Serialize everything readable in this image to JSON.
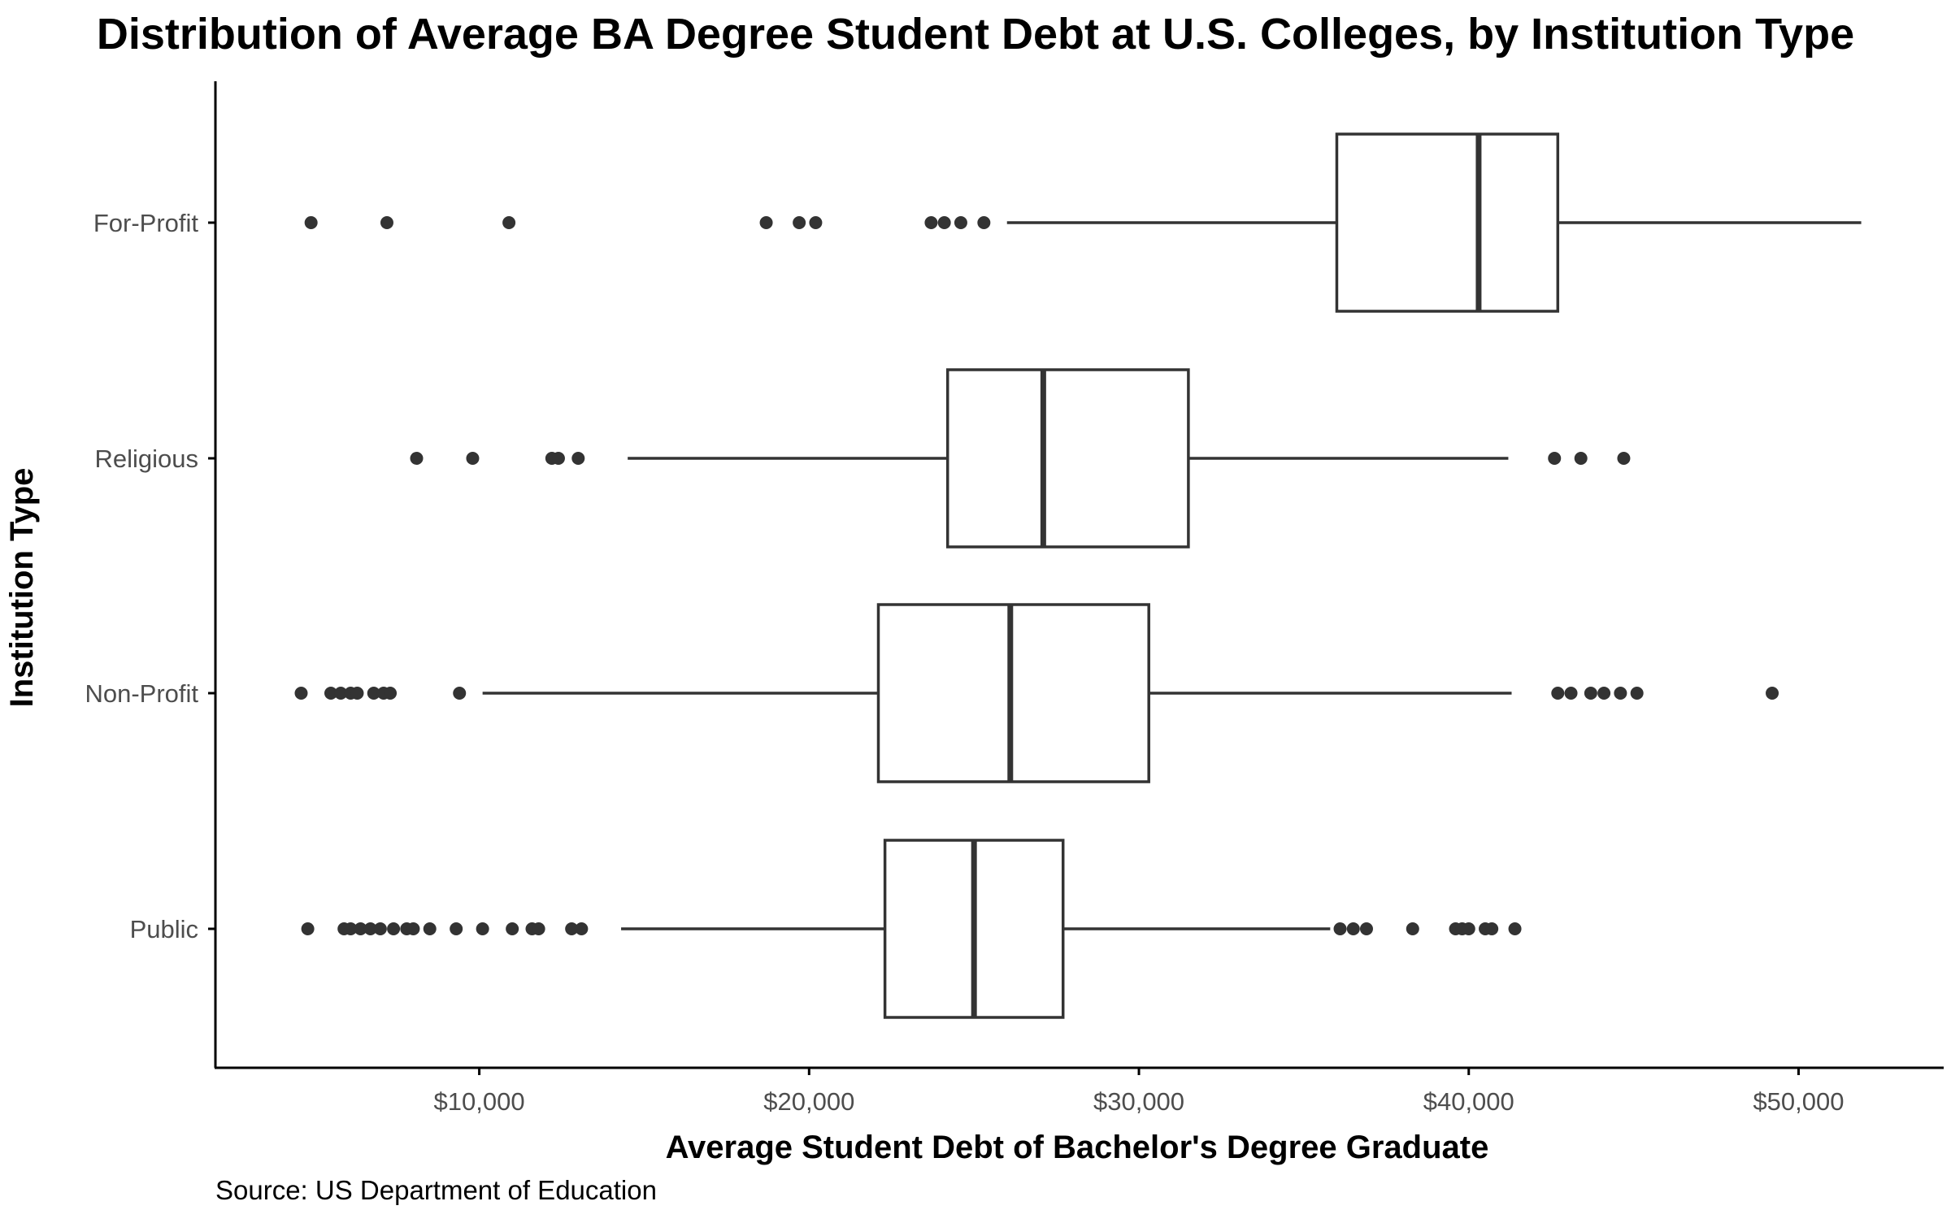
{
  "chart_data": {
    "type": "boxplot",
    "orientation": "horizontal",
    "title": "Distribution of Average BA Degree Student Debt at U.S. Colleges, by Institution Type",
    "xlabel": "Average Student Debt of Bachelor's Degree Graduate",
    "ylabel": "Institution Type",
    "caption": "Source: US Department of Education",
    "xlim": [
      2000,
      54400
    ],
    "xticks": [
      10000,
      20000,
      30000,
      40000,
      50000
    ],
    "xtick_labels": [
      "$10,000",
      "$20,000",
      "$30,000",
      "$40,000",
      "$50,000"
    ],
    "grid": false,
    "colors": {
      "box_fill": "#ffffff",
      "line": "#333333",
      "point": "#333333",
      "axis": "#000000"
    },
    "categories": [
      "For-Profit",
      "Religious",
      "Non-Profit",
      "Public"
    ],
    "boxes": [
      {
        "category": "For-Profit",
        "whisker_low": 26000,
        "q1": 36000,
        "median": 40300,
        "q3": 42700,
        "whisker_high": 51900,
        "outliers": [
          4900,
          7200,
          10900,
          18700,
          19700,
          20200,
          23700,
          24100,
          24600,
          25300
        ]
      },
      {
        "category": "Religious",
        "whisker_low": 14500,
        "q1": 24200,
        "median": 27100,
        "q3": 31500,
        "whisker_high": 41200,
        "outliers": [
          8100,
          9800,
          12200,
          12400,
          13000,
          42600,
          43400,
          44700
        ]
      },
      {
        "category": "Non-Profit",
        "whisker_low": 10100,
        "q1": 22100,
        "median": 26100,
        "q3": 30300,
        "whisker_high": 41300,
        "outliers": [
          4600,
          5500,
          5800,
          6100,
          6300,
          6800,
          7100,
          7300,
          9400,
          42700,
          43100,
          43700,
          44100,
          44600,
          45100,
          49200
        ]
      },
      {
        "category": "Public",
        "whisker_low": 14300,
        "q1": 22300,
        "median": 25000,
        "q3": 27700,
        "whisker_high": 35800,
        "outliers": [
          4800,
          5900,
          6100,
          6400,
          6700,
          7000,
          7400,
          7800,
          8000,
          8500,
          9300,
          10100,
          11000,
          11600,
          11800,
          12800,
          13100,
          36100,
          36500,
          36900,
          38300,
          39600,
          39800,
          40000,
          40500,
          40700,
          41400
        ]
      }
    ]
  }
}
